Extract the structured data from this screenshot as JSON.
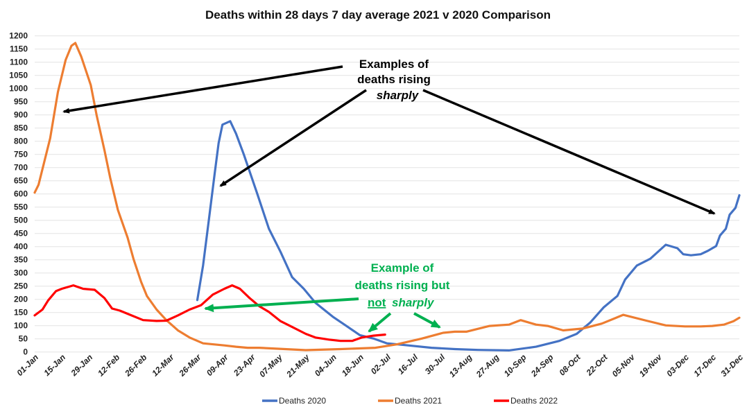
{
  "chart_data": {
    "type": "line",
    "title": "Deaths within 28 days 7 day average 2021 v 2020 Comparison",
    "xlabel": "",
    "ylabel": "",
    "ylim": [
      0,
      1200
    ],
    "ytick_step": 50,
    "grid": true,
    "legend_placement": "bottom",
    "x_tick_labels": [
      "01-Jan",
      "15-Jan",
      "29-Jan",
      "12-Feb",
      "26-Feb",
      "12-Mar",
      "26-Mar",
      "09-Apr",
      "23-Apr",
      "07-May",
      "21-May",
      "04-Jun",
      "18-Jun",
      "02-Jul",
      "16-Jul",
      "30-Jul",
      "13-Aug",
      "27-Aug",
      "10-Sep",
      "24-Sep",
      "08-Oct",
      "22-Oct",
      "05-Nov",
      "19-Nov",
      "03-Dec",
      "17-Dec",
      "31-Dec"
    ],
    "series": [
      {
        "name": "Deaths 2020",
        "color": "#4472C4",
        "points": [
          [
            "26-Mar",
            197
          ],
          [
            "29-Mar",
            329
          ],
          [
            "01-Apr",
            503
          ],
          [
            "04-Apr",
            679
          ],
          [
            "06-Apr",
            793
          ],
          [
            "08-Apr",
            863
          ],
          [
            "12-Apr",
            876
          ],
          [
            "15-Apr",
            829
          ],
          [
            "19-Apr",
            750
          ],
          [
            "26-Apr",
            600
          ],
          [
            "02-May",
            468
          ],
          [
            "08-May",
            380
          ],
          [
            "14-May",
            284
          ],
          [
            "20-May",
            240
          ],
          [
            "26-May",
            187
          ],
          [
            "04-Jun",
            134
          ],
          [
            "11-Jun",
            99
          ],
          [
            "18-Jun",
            64
          ],
          [
            "25-Jun",
            51
          ],
          [
            "02-Jul",
            33
          ],
          [
            "13-Jul",
            25
          ],
          [
            "25-Jul",
            16
          ],
          [
            "06-Aug",
            11
          ],
          [
            "18-Aug",
            8
          ],
          [
            "03-Sep",
            6
          ],
          [
            "17-Sep",
            20
          ],
          [
            "29-Sep",
            42
          ],
          [
            "08-Oct",
            69
          ],
          [
            "15-Oct",
            112
          ],
          [
            "22-Oct",
            170
          ],
          [
            "29-Oct",
            213
          ],
          [
            "02-Nov",
            275
          ],
          [
            "08-Nov",
            328
          ],
          [
            "15-Nov",
            354
          ],
          [
            "23-Nov",
            407
          ],
          [
            "29-Nov",
            394
          ],
          [
            "02-Dec",
            371
          ],
          [
            "06-Dec",
            367
          ],
          [
            "11-Dec",
            371
          ],
          [
            "15-Dec",
            385
          ],
          [
            "19-Dec",
            402
          ],
          [
            "21-Dec",
            442
          ],
          [
            "24-Dec",
            468
          ],
          [
            "26-Dec",
            521
          ],
          [
            "29-Dec",
            547
          ],
          [
            "31-Dec",
            595
          ]
        ]
      },
      {
        "name": "Deaths 2021",
        "color": "#ED7D31",
        "points": [
          [
            "01-Jan",
            605
          ],
          [
            "03-Jan",
            635
          ],
          [
            "09-Jan",
            811
          ],
          [
            "13-Jan",
            987
          ],
          [
            "17-Jan",
            1109
          ],
          [
            "20-Jan",
            1162
          ],
          [
            "22-Jan",
            1173
          ],
          [
            "25-Jan",
            1122
          ],
          [
            "30-Jan",
            1013
          ],
          [
            "02-Feb",
            899
          ],
          [
            "06-Feb",
            767
          ],
          [
            "09-Feb",
            661
          ],
          [
            "13-Feb",
            539
          ],
          [
            "18-Feb",
            434
          ],
          [
            "21-Feb",
            354
          ],
          [
            "25-Feb",
            266
          ],
          [
            "28-Feb",
            212
          ],
          [
            "05-Mar",
            161
          ],
          [
            "10-Mar",
            121
          ],
          [
            "16-Mar",
            82
          ],
          [
            "22-Mar",
            55
          ],
          [
            "29-Mar",
            33
          ],
          [
            "09-Apr",
            25
          ],
          [
            "15-Apr",
            20
          ],
          [
            "21-Apr",
            16
          ],
          [
            "27-Apr",
            16
          ],
          [
            "21-May",
            7
          ],
          [
            "08-Jun",
            11
          ],
          [
            "26-Jun",
            16
          ],
          [
            "07-Jul",
            29
          ],
          [
            "20-Jul",
            51
          ],
          [
            "31-Jul",
            73
          ],
          [
            "06-Aug",
            77
          ],
          [
            "12-Aug",
            77
          ],
          [
            "24-Aug",
            99
          ],
          [
            "03-Sep",
            104
          ],
          [
            "09-Sep",
            121
          ],
          [
            "17-Sep",
            104
          ],
          [
            "23-Sep",
            99
          ],
          [
            "01-Oct",
            82
          ],
          [
            "11-Oct",
            89
          ],
          [
            "21-Oct",
            108
          ],
          [
            "01-Nov",
            141
          ],
          [
            "13-Nov",
            119
          ],
          [
            "23-Nov",
            101
          ],
          [
            "03-Dec",
            97
          ],
          [
            "11-Dec",
            97
          ],
          [
            "17-Dec",
            99
          ],
          [
            "23-Dec",
            104
          ],
          [
            "28-Dec",
            117
          ],
          [
            "31-Dec",
            130
          ]
        ]
      },
      {
        "name": "Deaths 2022",
        "color": "#FF0000",
        "points": [
          [
            "01-Jan",
            139
          ],
          [
            "05-Jan",
            161
          ],
          [
            "08-Jan",
            196
          ],
          [
            "12-Jan",
            231
          ],
          [
            "15-Jan",
            240
          ],
          [
            "21-Jan",
            253
          ],
          [
            "26-Jan",
            240
          ],
          [
            "01-Feb",
            236
          ],
          [
            "06-Feb",
            205
          ],
          [
            "10-Feb",
            165
          ],
          [
            "14-Feb",
            157
          ],
          [
            "20-Feb",
            139
          ],
          [
            "26-Feb",
            121
          ],
          [
            "05-Mar",
            118
          ],
          [
            "10-Mar",
            119
          ],
          [
            "16-Mar",
            139
          ],
          [
            "22-Mar",
            161
          ],
          [
            "28-Mar",
            178
          ],
          [
            "03-Apr",
            218
          ],
          [
            "09-Apr",
            240
          ],
          [
            "13-Apr",
            253
          ],
          [
            "17-Apr",
            240
          ],
          [
            "22-Apr",
            205
          ],
          [
            "27-Apr",
            174
          ],
          [
            "02-May",
            152
          ],
          [
            "08-May",
            117
          ],
          [
            "14-May",
            95
          ],
          [
            "21-May",
            69
          ],
          [
            "26-May",
            55
          ],
          [
            "02-Jun",
            47
          ],
          [
            "08-Jun",
            42
          ],
          [
            "14-Jun",
            42
          ],
          [
            "19-Jun",
            55
          ],
          [
            "25-Jun",
            62
          ],
          [
            "01-Jul",
            66
          ]
        ]
      }
    ],
    "annotations": {
      "sharply": {
        "line1": "Examples of",
        "line2": "deaths rising",
        "line3": "sharply",
        "color": "#000000"
      },
      "not_sharply": {
        "line1": "Example of",
        "line2": "deaths rising but",
        "line3_a": "not",
        "line3_b": "sharply",
        "color": "#00B050"
      }
    }
  }
}
